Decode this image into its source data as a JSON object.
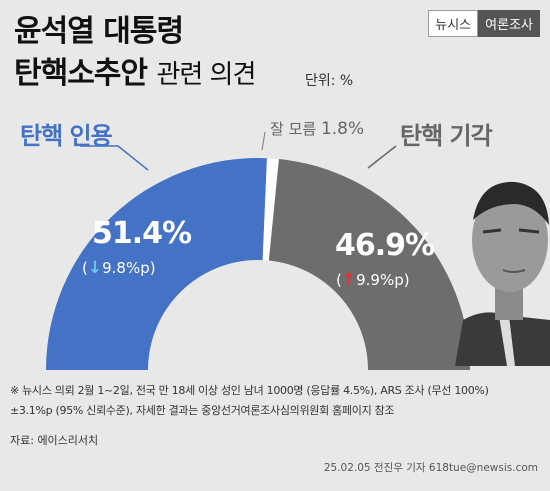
{
  "header": {
    "title_line1": "윤석열 대통령",
    "title_line2_bold": "탄핵소추안",
    "title_line2_light": "관련 의견",
    "unit": "단위: %",
    "brand_left": "뉴시스",
    "brand_right": "여론조사"
  },
  "labels": {
    "approve": "탄핵 인용",
    "reject": "탄핵 기각",
    "unknown_text": "잘 모름",
    "unknown_value": "1.8%",
    "approve_pct": "51.4%",
    "approve_change_open": "(",
    "approve_change_arrow": "↓",
    "approve_change_value": "9.8%p",
    "approve_change_close": ")",
    "reject_pct": "46.9%",
    "reject_change_open": "(",
    "reject_change_arrow": "↑",
    "reject_change_value": "9.9%p",
    "reject_change_close": ")"
  },
  "chart_data": {
    "type": "pie",
    "shape": "half-donut",
    "categories": [
      "탄핵 인용",
      "잘 모름",
      "탄핵 기각"
    ],
    "values": [
      51.4,
      1.8,
      46.9
    ],
    "changes_pp": [
      -9.8,
      null,
      9.9
    ],
    "colors": [
      "#4472c4",
      "#ffffff",
      "#6d6d6d"
    ]
  },
  "footnote": {
    "line1": "※ 뉴시스 의뢰 2월 1~2일, 전국 만 18세 이상 성인 남녀 1000명 (응답률 4.5%), ARS 조사 (무선 100%)",
    "line2": "±3.1%p (95% 신뢰수준), 자세한 결과는 중앙선거여론조사심의위원회 홈페이지 참조",
    "source": "자료: 에이스리서치",
    "credit": "25.02.05 전진우 기자 618tue@newsis.com"
  },
  "colors": {
    "background": "#e8e8e8",
    "approve": "#4472c4",
    "reject": "#6d6d6d",
    "unknown": "#ffffff",
    "down_arrow": "#6fc4ee",
    "up_arrow": "#e8312f"
  }
}
